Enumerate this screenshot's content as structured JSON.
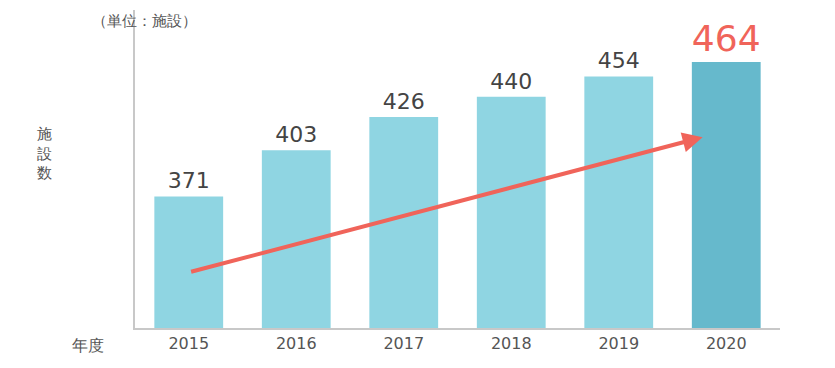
{
  "chart_data": {
    "type": "bar",
    "annotations": [
      "（単位：施設）"
    ],
    "y_label": "施設数",
    "x_label": "年度",
    "categories": [
      "2015",
      "2016",
      "2017",
      "2018",
      "2019",
      "2020"
    ],
    "values": [
      371,
      403,
      426,
      440,
      454,
      464
    ],
    "colors": [
      "#8fd5e2",
      "#8fd5e2",
      "#8fd5e2",
      "#8fd5e2",
      "#8fd5e2",
      "#66b9cc"
    ],
    "ylim": [
      280,
      500
    ],
    "tick_labels": "x",
    "data_labels": true,
    "grid": false
  }
}
